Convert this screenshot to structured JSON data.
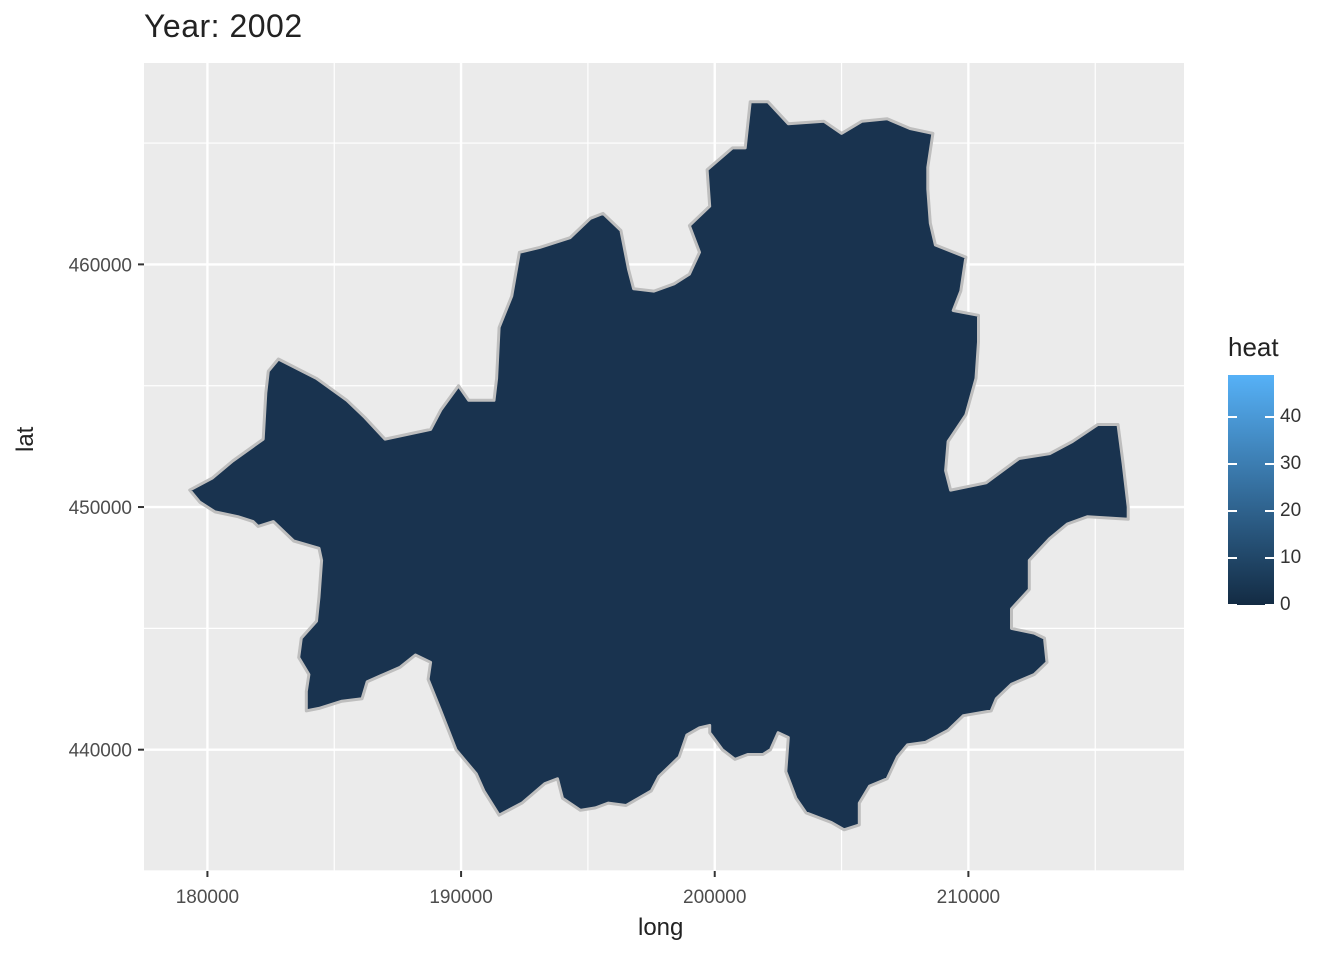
{
  "title": "Year: 2002",
  "chart_data": {
    "type": "map",
    "title": "Year: 2002",
    "xlabel": "long",
    "ylabel": "lat",
    "xlim": [
      177500,
      218500
    ],
    "ylim": [
      435000,
      468300
    ],
    "x_ticks": [
      180000,
      190000,
      200000,
      210000
    ],
    "x_tick_labels": [
      "180000",
      "190000",
      "200000",
      "210000"
    ],
    "y_ticks": [
      440000,
      450000,
      460000
    ],
    "y_tick_labels": [
      "440000",
      "450000",
      "460000"
    ],
    "grid": true,
    "legend": {
      "title": "heat",
      "position": "right",
      "range": [
        0,
        49
      ],
      "ticks": [
        0,
        10,
        20,
        30,
        40
      ],
      "tick_labels": [
        "0",
        "10",
        "20",
        "30",
        "40"
      ],
      "low_color": "#132B43",
      "high_color": "#56B1F7"
    },
    "regions": [
      {
        "heat": 3,
        "fill": "#19334F",
        "border": "#BEBEBE",
        "outline": [
          [
            179300,
            450700
          ],
          [
            180200,
            451200
          ],
          [
            181000,
            451900
          ],
          [
            182200,
            452800
          ],
          [
            182300,
            454700
          ],
          [
            182400,
            455600
          ],
          [
            182800,
            456100
          ],
          [
            184300,
            455300
          ],
          [
            185500,
            454400
          ],
          [
            186200,
            453700
          ],
          [
            187000,
            452800
          ],
          [
            188800,
            453200
          ],
          [
            189200,
            454000
          ],
          [
            189900,
            455000
          ],
          [
            190300,
            454400
          ],
          [
            191300,
            454400
          ],
          [
            191400,
            455300
          ],
          [
            191500,
            457400
          ],
          [
            192000,
            458700
          ],
          [
            192300,
            460500
          ],
          [
            193100,
            460700
          ],
          [
            194300,
            461100
          ],
          [
            195100,
            461900
          ],
          [
            195600,
            462100
          ],
          [
            196300,
            461400
          ],
          [
            196600,
            459800
          ],
          [
            196800,
            459000
          ],
          [
            197600,
            458900
          ],
          [
            198400,
            459200
          ],
          [
            199000,
            459600
          ],
          [
            199400,
            460500
          ],
          [
            199000,
            461600
          ],
          [
            199800,
            462400
          ],
          [
            199700,
            463900
          ],
          [
            200700,
            464800
          ],
          [
            201200,
            464800
          ],
          [
            201400,
            466700
          ],
          [
            202100,
            466700
          ],
          [
            202900,
            465800
          ],
          [
            204300,
            465900
          ],
          [
            205000,
            465400
          ],
          [
            205800,
            465900
          ],
          [
            206800,
            466000
          ],
          [
            207700,
            465600
          ],
          [
            208600,
            465400
          ],
          [
            208400,
            464000
          ],
          [
            208400,
            463100
          ],
          [
            208500,
            461700
          ],
          [
            208700,
            460800
          ],
          [
            209900,
            460300
          ],
          [
            209700,
            458900
          ],
          [
            209400,
            458100
          ],
          [
            210400,
            457900
          ],
          [
            210400,
            456800
          ],
          [
            210300,
            455300
          ],
          [
            209900,
            453800
          ],
          [
            209200,
            452700
          ],
          [
            209100,
            451500
          ],
          [
            209300,
            450700
          ],
          [
            210700,
            451000
          ],
          [
            212000,
            452000
          ],
          [
            213200,
            452200
          ],
          [
            214100,
            452700
          ],
          [
            215100,
            453400
          ],
          [
            215900,
            453400
          ],
          [
            216100,
            451800
          ],
          [
            216300,
            450000
          ],
          [
            216300,
            449500
          ],
          [
            214700,
            449600
          ],
          [
            213900,
            449300
          ],
          [
            213200,
            448700
          ],
          [
            212400,
            447800
          ],
          [
            212400,
            446600
          ],
          [
            211700,
            445800
          ],
          [
            211700,
            445000
          ],
          [
            212600,
            444800
          ],
          [
            213000,
            444600
          ],
          [
            213100,
            443600
          ],
          [
            212600,
            443100
          ],
          [
            211700,
            442700
          ],
          [
            211100,
            442100
          ],
          [
            210900,
            441600
          ],
          [
            209800,
            441400
          ],
          [
            209200,
            440800
          ],
          [
            208300,
            440300
          ],
          [
            207600,
            440200
          ],
          [
            207200,
            439700
          ],
          [
            206800,
            438800
          ],
          [
            206100,
            438500
          ],
          [
            205700,
            437800
          ],
          [
            205700,
            436900
          ],
          [
            205100,
            436700
          ],
          [
            204600,
            437000
          ],
          [
            203600,
            437400
          ],
          [
            203200,
            438000
          ],
          [
            202800,
            439100
          ],
          [
            202900,
            440500
          ],
          [
            202500,
            440700
          ],
          [
            202200,
            440000
          ],
          [
            201900,
            439800
          ],
          [
            201300,
            439800
          ],
          [
            200800,
            439600
          ],
          [
            200300,
            440000
          ],
          [
            199800,
            440700
          ],
          [
            199800,
            441000
          ],
          [
            199400,
            440900
          ],
          [
            198900,
            440600
          ],
          [
            198600,
            439700
          ],
          [
            197800,
            438900
          ],
          [
            197500,
            438300
          ],
          [
            196500,
            437700
          ],
          [
            195800,
            437800
          ],
          [
            195300,
            437600
          ],
          [
            194700,
            437500
          ],
          [
            194000,
            438000
          ],
          [
            193800,
            438800
          ],
          [
            193300,
            438600
          ],
          [
            192400,
            437800
          ],
          [
            191500,
            437300
          ],
          [
            190900,
            438300
          ],
          [
            190600,
            439000
          ],
          [
            189800,
            440000
          ],
          [
            189200,
            441600
          ],
          [
            188700,
            442900
          ],
          [
            188800,
            443600
          ],
          [
            188200,
            443900
          ],
          [
            187600,
            443400
          ],
          [
            186300,
            442800
          ],
          [
            186100,
            442100
          ],
          [
            185300,
            442000
          ],
          [
            184400,
            441700
          ],
          [
            183900,
            441600
          ],
          [
            183900,
            442400
          ],
          [
            184000,
            443100
          ],
          [
            183600,
            443800
          ],
          [
            183700,
            444600
          ],
          [
            184300,
            445300
          ],
          [
            184400,
            446300
          ],
          [
            184500,
            447800
          ],
          [
            184400,
            448300
          ],
          [
            183400,
            448600
          ],
          [
            182600,
            449400
          ],
          [
            182000,
            449200
          ],
          [
            181800,
            449400
          ],
          [
            181200,
            449600
          ],
          [
            180300,
            449800
          ],
          [
            179700,
            450200
          ],
          [
            179300,
            450700
          ]
        ]
      }
    ]
  }
}
